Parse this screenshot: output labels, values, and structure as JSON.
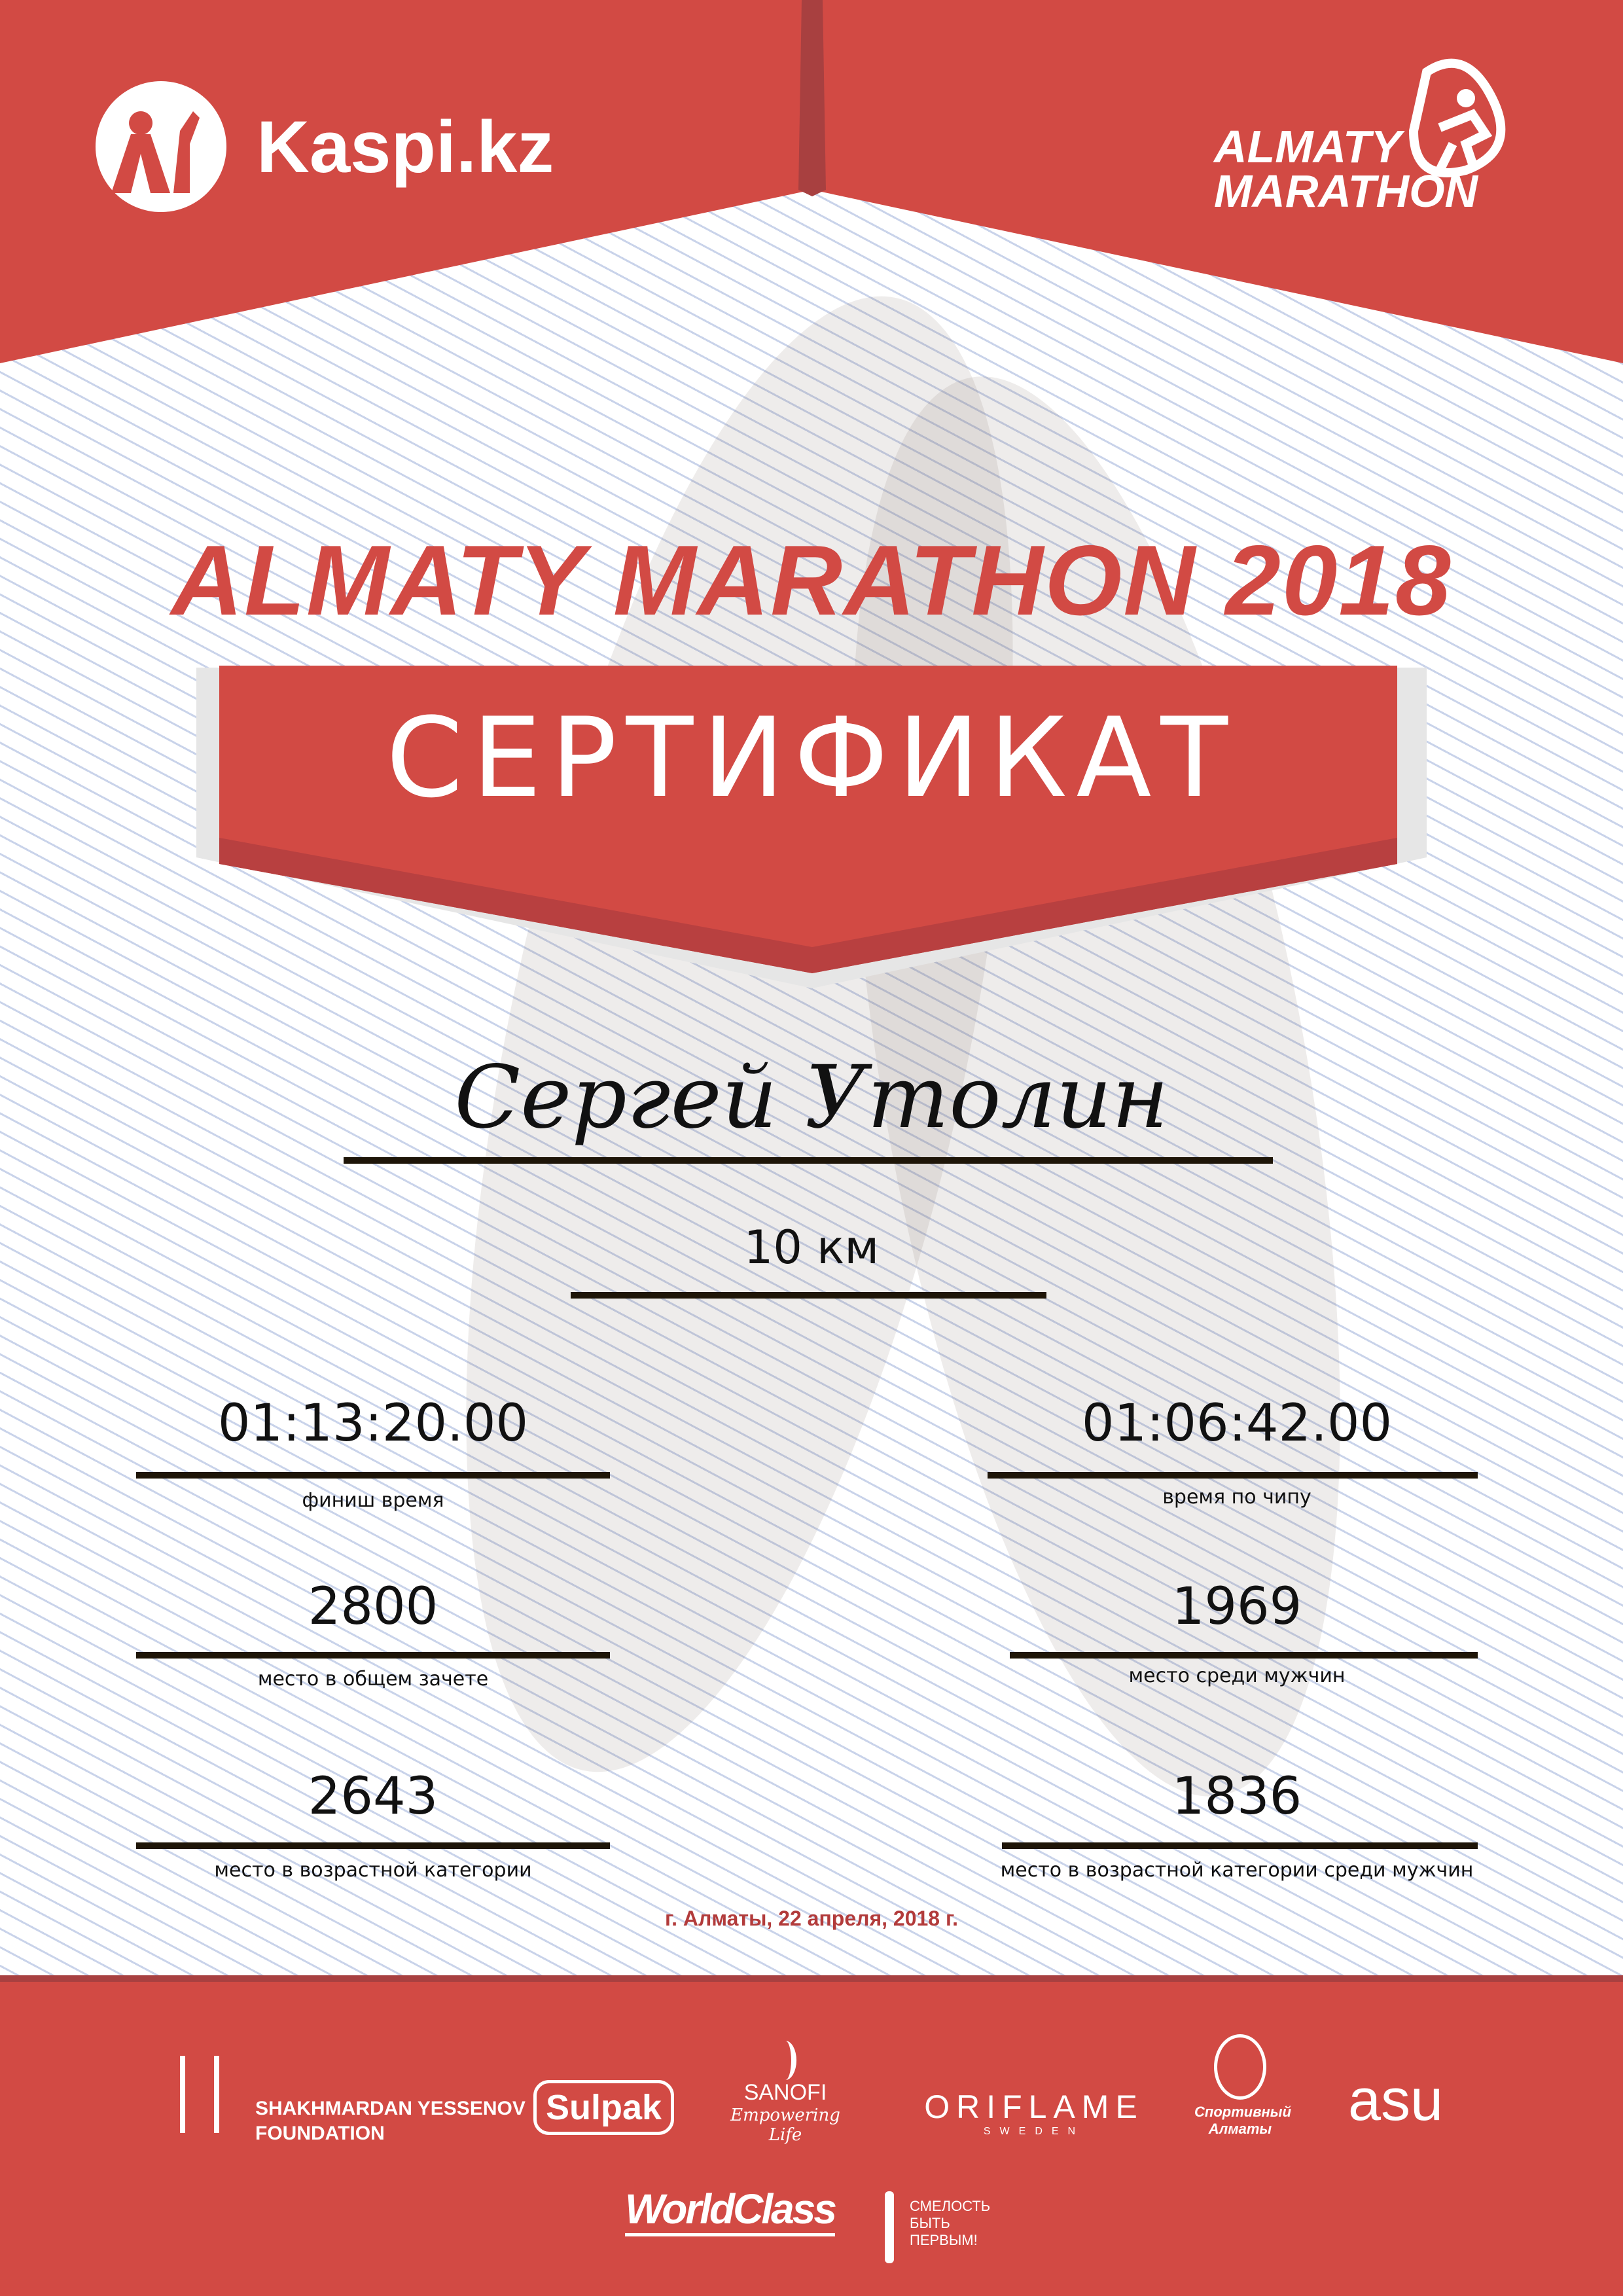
{
  "header": {
    "kaspi_logo": "Kaspi.kz",
    "marathon_logo": [
      "ALMATY",
      "MARATHON"
    ]
  },
  "title": "ALMATY MARATHON 2018",
  "banner": "СЕРТИФИКАТ",
  "participant": {
    "name": "Сергей Утолин",
    "distance": "10 км"
  },
  "stats": [
    {
      "value": "01:13:20.00",
      "label": "финиш время"
    },
    {
      "value": "01:06:42.00",
      "label": "время по чипу"
    },
    {
      "value": "2800",
      "label": "место в общем зачете"
    },
    {
      "value": "1969",
      "label": "место среди мужчин"
    },
    {
      "value": "2643",
      "label": "место в возрастной категории"
    },
    {
      "value": "1836",
      "label": "место в возрастной категории среди мужчин"
    }
  ],
  "date": "г. Алматы, 22 апреля, 2018 г.",
  "sponsors": {
    "yessenov": [
      "SHAKHMARDAN YESSENOV",
      "FOUNDATION"
    ],
    "sulpak": "Sulpak",
    "sanofi": [
      "SANOFI",
      "Empowering Life"
    ],
    "oriflame": [
      "ORIFLAME",
      "SWEDEN"
    ],
    "sport_almaty": [
      "Спортивный",
      "Алматы"
    ],
    "asu": "asu",
    "worldclass": "WorldClass",
    "smelost": [
      "СМЕЛОСТЬ",
      "БЫТЬ",
      "ПЕРВЫМ!"
    ]
  },
  "colors": {
    "brand_red": "#d24a44",
    "dark_red": "#a84040",
    "line": "#1e1508"
  }
}
